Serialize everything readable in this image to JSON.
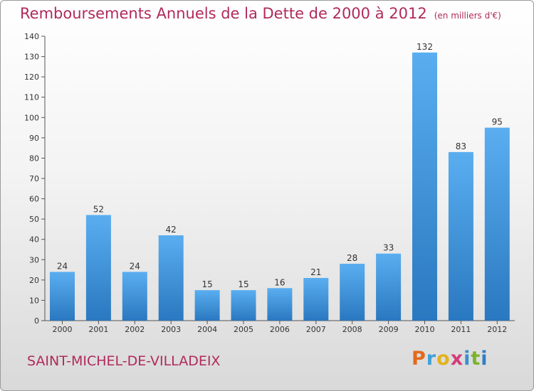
{
  "header": {
    "title": "Remboursements Annuels de la Dette de 2000 à 2012",
    "unit": "(en milliers d'€)"
  },
  "footer": {
    "town": "SAINT-MICHEL-DE-VILLADEIX",
    "logo_text": "Proxiti"
  },
  "colors": {
    "title": "#b02a5b",
    "bar_top": "#5aaef0",
    "bar_bottom": "#2a78c0"
  },
  "chart_data": {
    "type": "bar",
    "categories": [
      "2000",
      "2001",
      "2002",
      "2003",
      "2004",
      "2005",
      "2006",
      "2007",
      "2008",
      "2009",
      "2010",
      "2011",
      "2012"
    ],
    "values": [
      24,
      52,
      24,
      42,
      15,
      15,
      16,
      21,
      28,
      33,
      132,
      83,
      95
    ],
    "ylim": [
      0,
      140
    ],
    "yticks": [
      0,
      10,
      20,
      30,
      40,
      50,
      60,
      70,
      80,
      90,
      100,
      110,
      120,
      130,
      140
    ],
    "grid": false,
    "title": "Remboursements Annuels de la Dette de 2000 à 2012",
    "xlabel": "",
    "ylabel": ""
  }
}
